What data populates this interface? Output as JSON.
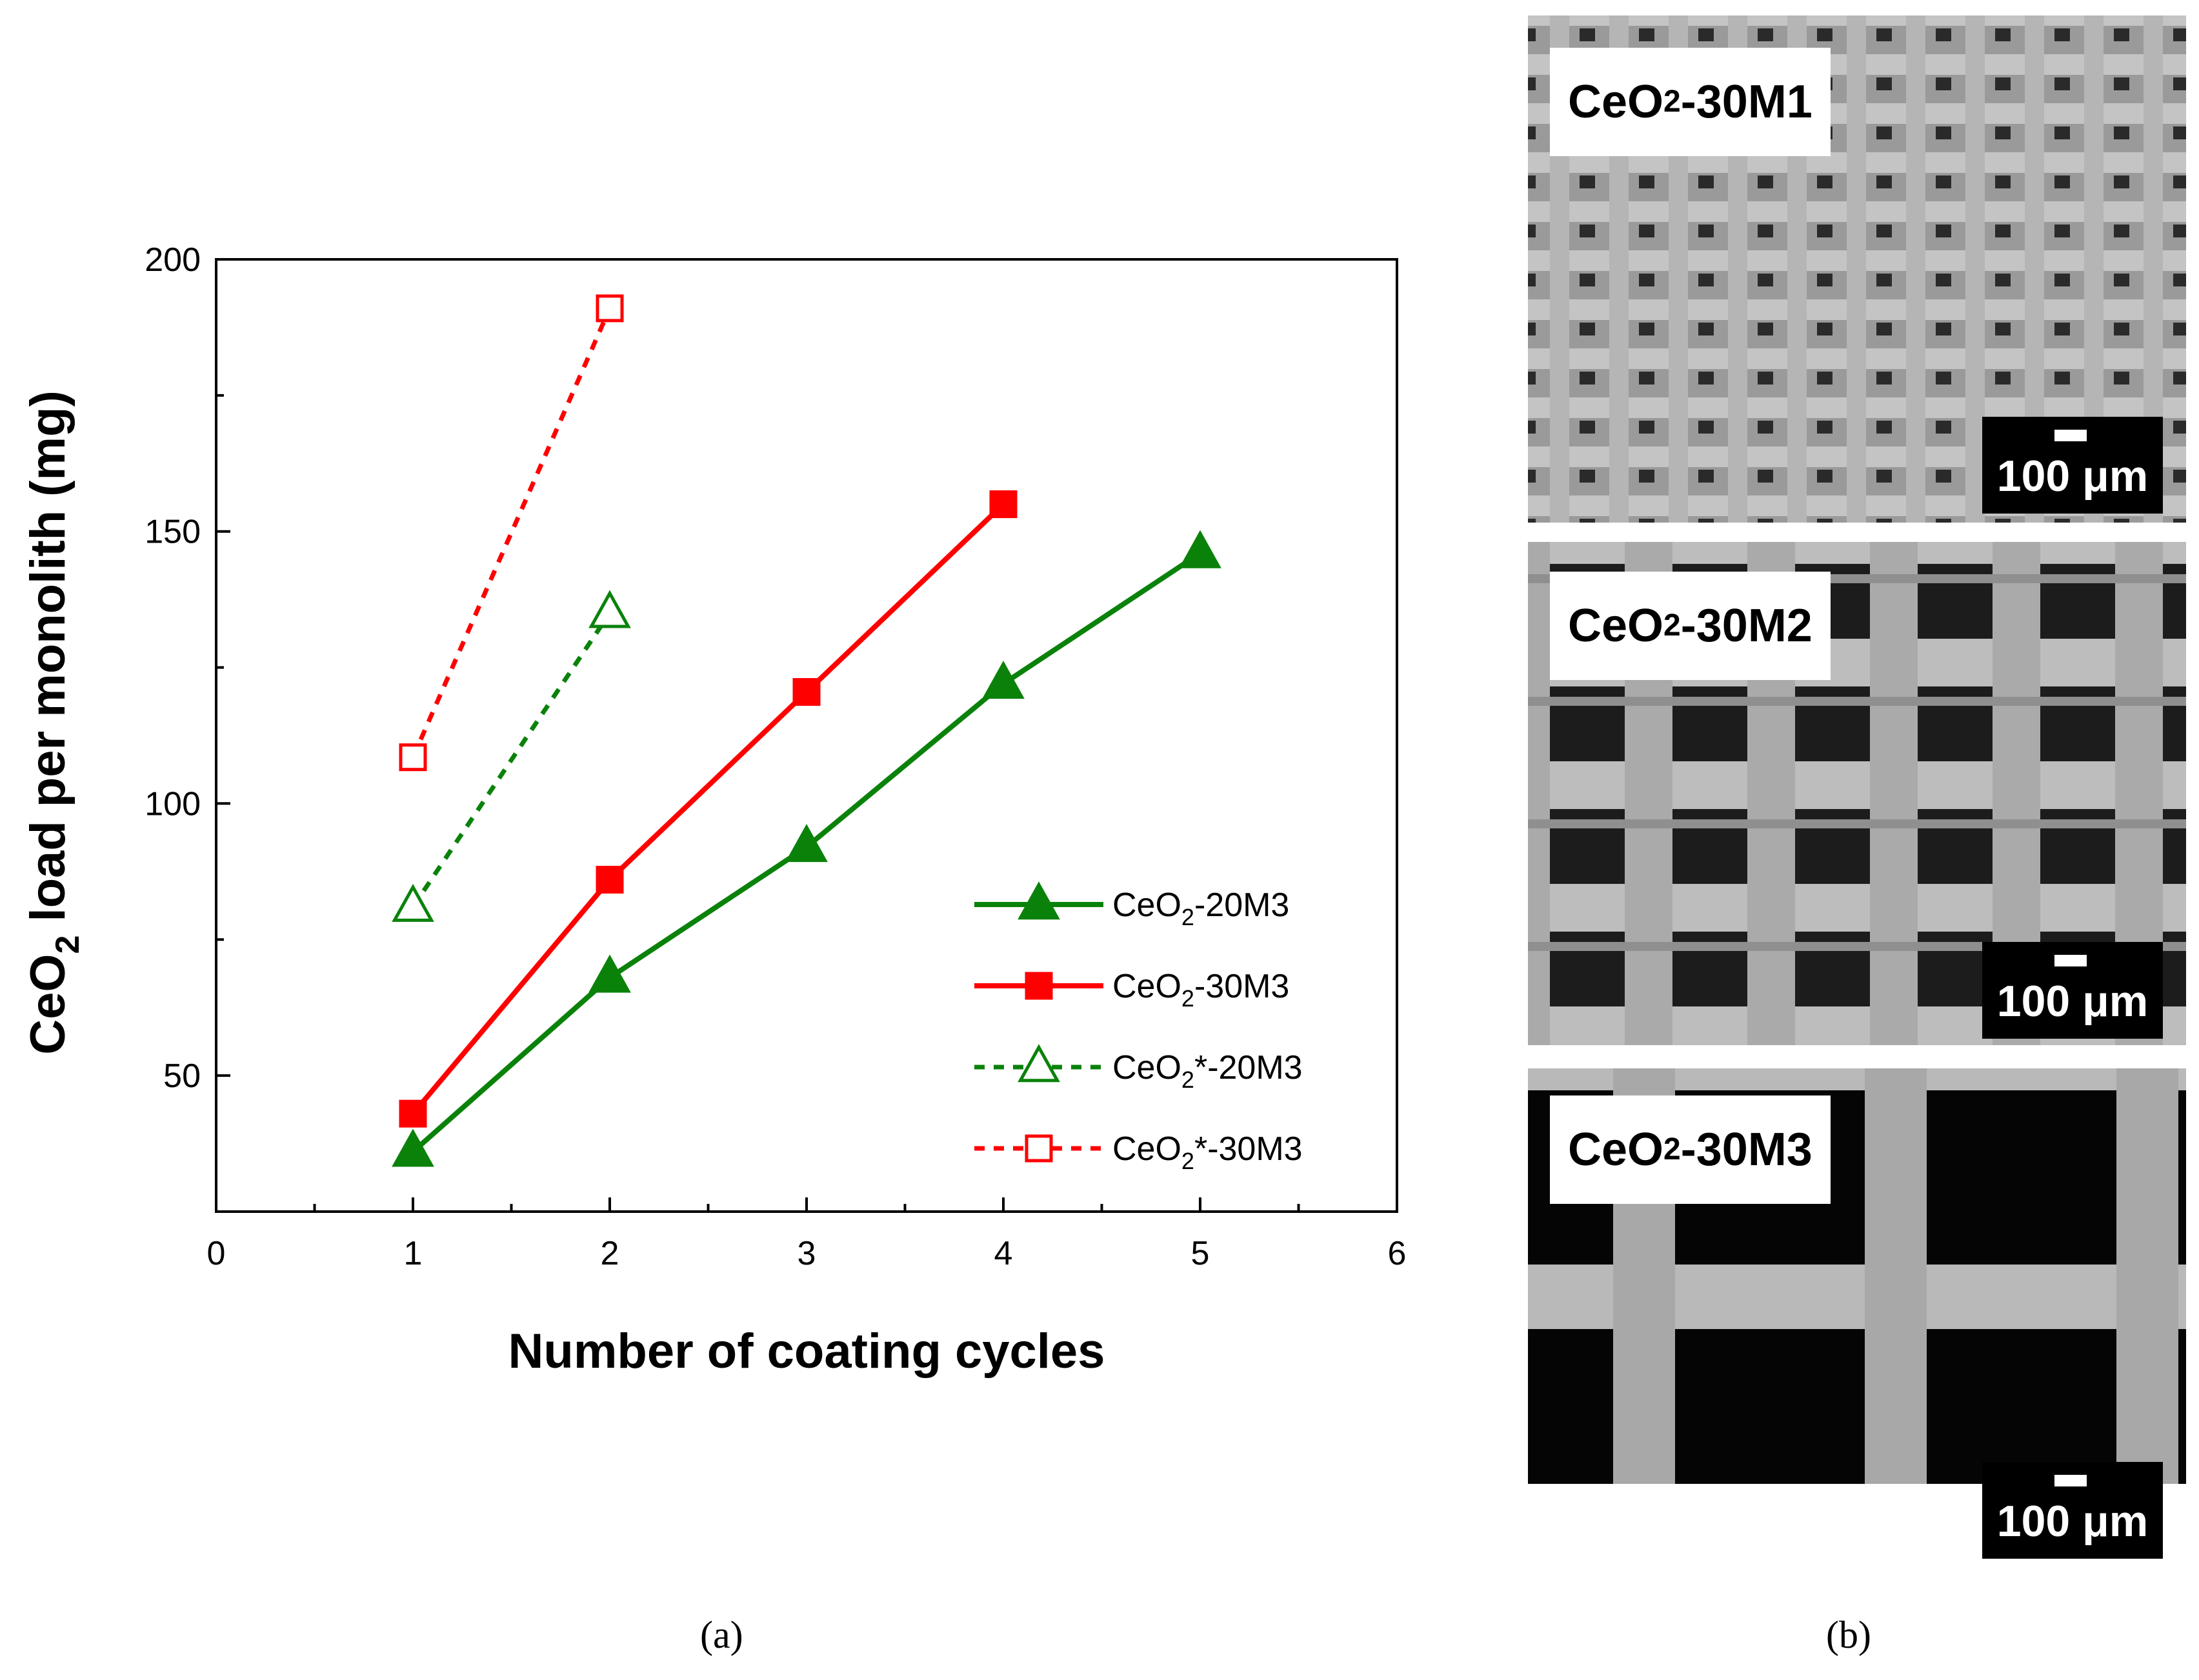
{
  "chart_data": {
    "type": "line",
    "xlabel": "Number of coating cycles",
    "ylabel": {
      "main": "CeO",
      "sub": "2",
      "rest": " load per monolith (mg)"
    },
    "xlim": [
      0,
      6
    ],
    "ylim": [
      25,
      200
    ],
    "x_ticks": [
      "0",
      "1",
      "2",
      "3",
      "4",
      "5",
      "6"
    ],
    "y_ticks": [
      "50",
      "100",
      "150",
      "200"
    ],
    "series": [
      {
        "name": "CeO2-20M3",
        "label_main": "CeO",
        "label_sub": "2",
        "label_rest": "-20M3",
        "color": "#0a820a",
        "marker": "triangle",
        "filled": true,
        "dashed": false,
        "x": [
          1,
          2,
          3,
          4,
          5
        ],
        "y": [
          36,
          68,
          92,
          122,
          146
        ]
      },
      {
        "name": "CeO2-30M3",
        "label_main": "CeO",
        "label_sub": "2",
        "label_rest": "-30M3",
        "color": "#ff0000",
        "marker": "square",
        "filled": true,
        "dashed": false,
        "x": [
          1,
          2,
          3,
          4
        ],
        "y": [
          43,
          86,
          120.5,
          155
        ]
      },
      {
        "name": "CeO2*-20M3",
        "label_main": "CeO",
        "label_sub": "2",
        "label_rest": "*-20M3",
        "color": "#0a820a",
        "marker": "triangle",
        "filled": false,
        "dashed": true,
        "x": [
          1,
          2
        ],
        "y": [
          81,
          135
        ]
      },
      {
        "name": "CeO2*-30M3",
        "label_main": "CeO",
        "label_sub": "2",
        "label_rest": "*-30M3",
        "color": "#ff0000",
        "marker": "square",
        "filled": false,
        "dashed": true,
        "x": [
          1,
          2
        ],
        "y": [
          108.5,
          191
        ]
      }
    ],
    "legend_position": "bottom-right",
    "grid": false
  },
  "captions": {
    "a": "(a)",
    "b": "(b)"
  },
  "sem_panels": [
    {
      "label_main": "CeO",
      "label_sub": "2",
      "label_rest": "-30M1",
      "scale": "100 μm",
      "style": "fine-mesh"
    },
    {
      "label_main": "CeO",
      "label_sub": "2",
      "label_rest": "-30M2",
      "scale": "100 μm",
      "style": "medium-mesh"
    },
    {
      "label_main": "CeO",
      "label_sub": "2",
      "label_rest": "-30M3",
      "scale": "100 μm",
      "style": "coarse-mesh"
    }
  ]
}
